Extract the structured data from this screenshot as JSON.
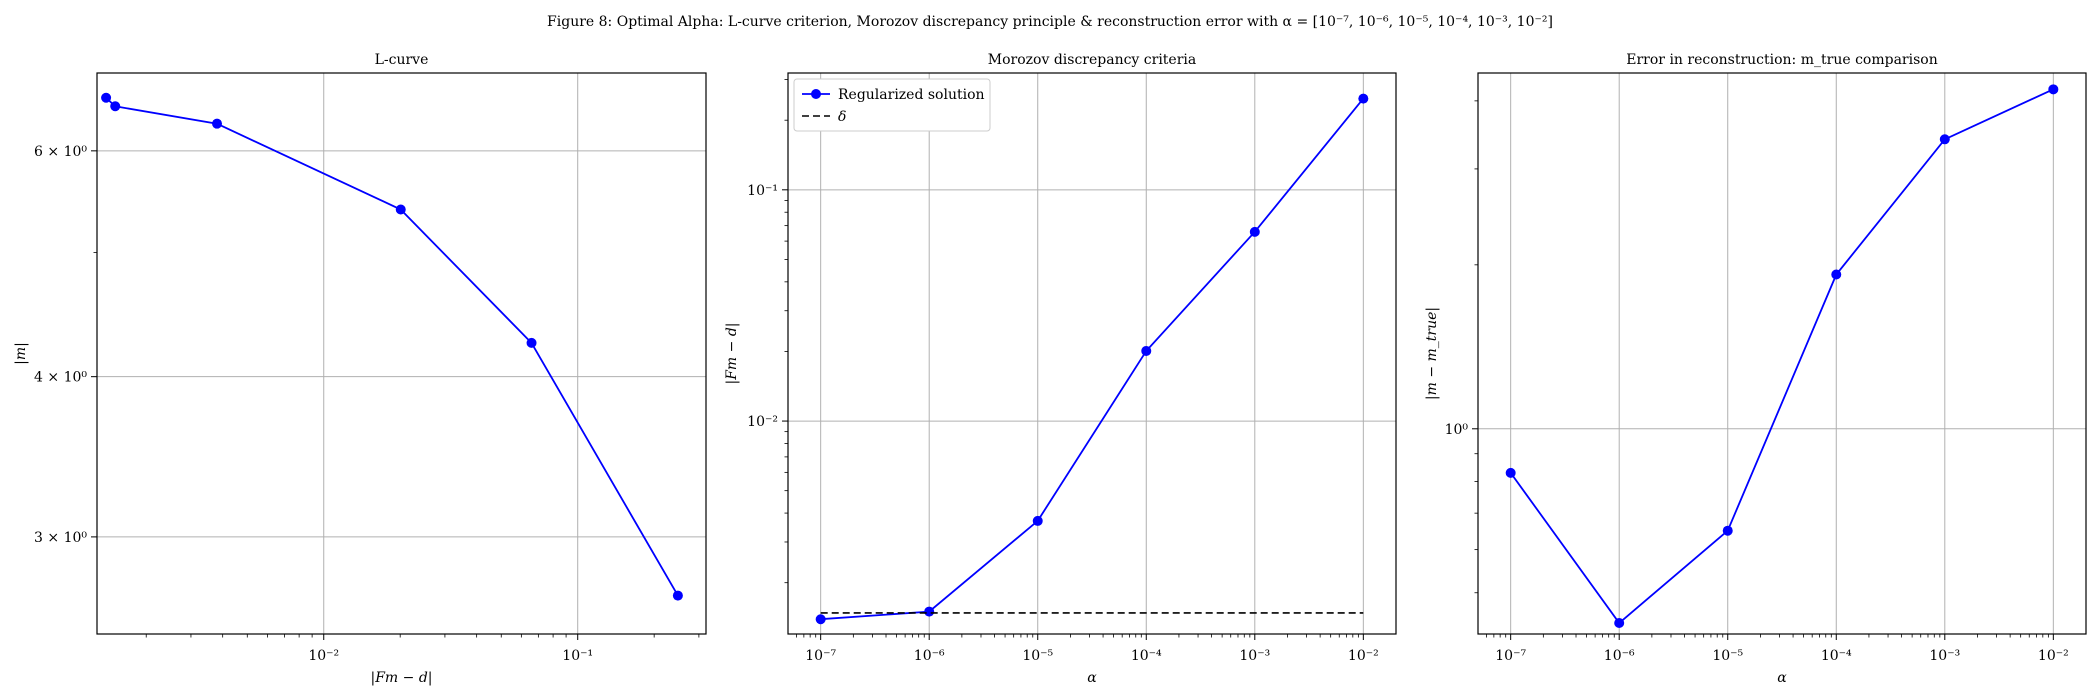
{
  "figure": {
    "title": "Figure 8: Optimal Alpha: L-curve criterion, Morozov discrepancy principle & reconstruction error with α = [10⁻⁷, 10⁻⁶, 10⁻⁵, 10⁻⁴, 10⁻³, 10⁻²]"
  },
  "chart_data": [
    {
      "type": "line",
      "title": "L-curve",
      "xlabel": "|Fm − d|",
      "ylabel": "|m|",
      "xscale": "log",
      "yscale": "log",
      "xlim": [
        0.00128,
        0.32
      ],
      "ylim": [
        2.52,
        6.9
      ],
      "grid": true,
      "xticks": [
        {
          "value": 0.01,
          "label": "10⁻²"
        },
        {
          "value": 0.1,
          "label": "10⁻¹"
        }
      ],
      "yticks": [
        {
          "value": 3,
          "label": "3 × 10⁰"
        },
        {
          "value": 4,
          "label": "4 × 10⁰"
        },
        {
          "value": 6,
          "label": "6 × 10⁰"
        }
      ],
      "color": "#0000ff",
      "series": [
        {
          "x": [
            0.00139,
            0.00151,
            0.0038,
            0.0201,
            0.0658,
            0.248
          ],
          "y": [
            6.6,
            6.5,
            6.3,
            5.4,
            4.25,
            2.7
          ]
        }
      ]
    },
    {
      "type": "line",
      "title": "Morozov discrepancy criteria",
      "xlabel": "α",
      "ylabel": "|Fm − d|",
      "xscale": "log",
      "yscale": "log",
      "xlim": [
        5e-08,
        0.02
      ],
      "ylim": [
        0.0012,
        0.32
      ],
      "grid": true,
      "legend": "top-left",
      "xticks": [
        {
          "value": 1e-07,
          "label": "10⁻⁷"
        },
        {
          "value": 1e-06,
          "label": "10⁻⁶"
        },
        {
          "value": 1e-05,
          "label": "10⁻⁵"
        },
        {
          "value": 0.0001,
          "label": "10⁻⁴"
        },
        {
          "value": 0.001,
          "label": "10⁻³"
        },
        {
          "value": 0.01,
          "label": "10⁻²"
        }
      ],
      "yticks": [
        {
          "value": 0.01,
          "label": "10⁻²"
        },
        {
          "value": 0.1,
          "label": "10⁻¹"
        }
      ],
      "series": [
        {
          "name": "Regularized solution",
          "color": "#0000ff",
          "style": "solid-markers",
          "x": [
            1e-07,
            1e-06,
            1e-05,
            0.0001,
            0.001,
            0.01
          ],
          "y": [
            0.00139,
            0.0015,
            0.0037,
            0.0201,
            0.0658,
            0.248
          ]
        },
        {
          "name": "δ",
          "color": "#000000",
          "style": "dashed",
          "x": [
            1e-07,
            0.01
          ],
          "y": [
            0.00148,
            0.00148
          ]
        }
      ]
    },
    {
      "type": "line",
      "title": "Error in reconstruction: m_true comparison",
      "xlabel": "α",
      "ylabel": "|m − m_true|",
      "xscale": "log",
      "yscale": "log",
      "xlim": [
        5e-08,
        0.02
      ],
      "ylim": [
        0.42,
        4.5
      ],
      "grid": true,
      "xticks": [
        {
          "value": 1e-07,
          "label": "10⁻⁷"
        },
        {
          "value": 1e-06,
          "label": "10⁻⁶"
        },
        {
          "value": 1e-05,
          "label": "10⁻⁵"
        },
        {
          "value": 0.0001,
          "label": "10⁻⁴"
        },
        {
          "value": 0.001,
          "label": "10⁻³"
        },
        {
          "value": 0.01,
          "label": "10⁻²"
        }
      ],
      "yticks": [
        {
          "value": 1,
          "label": "10⁰"
        }
      ],
      "color": "#0000ff",
      "series": [
        {
          "x": [
            1e-07,
            1e-06,
            1e-05,
            0.0001,
            0.001,
            0.01
          ],
          "y": [
            0.83,
            0.44,
            0.65,
            1.92,
            3.4,
            4.2
          ]
        }
      ]
    }
  ]
}
